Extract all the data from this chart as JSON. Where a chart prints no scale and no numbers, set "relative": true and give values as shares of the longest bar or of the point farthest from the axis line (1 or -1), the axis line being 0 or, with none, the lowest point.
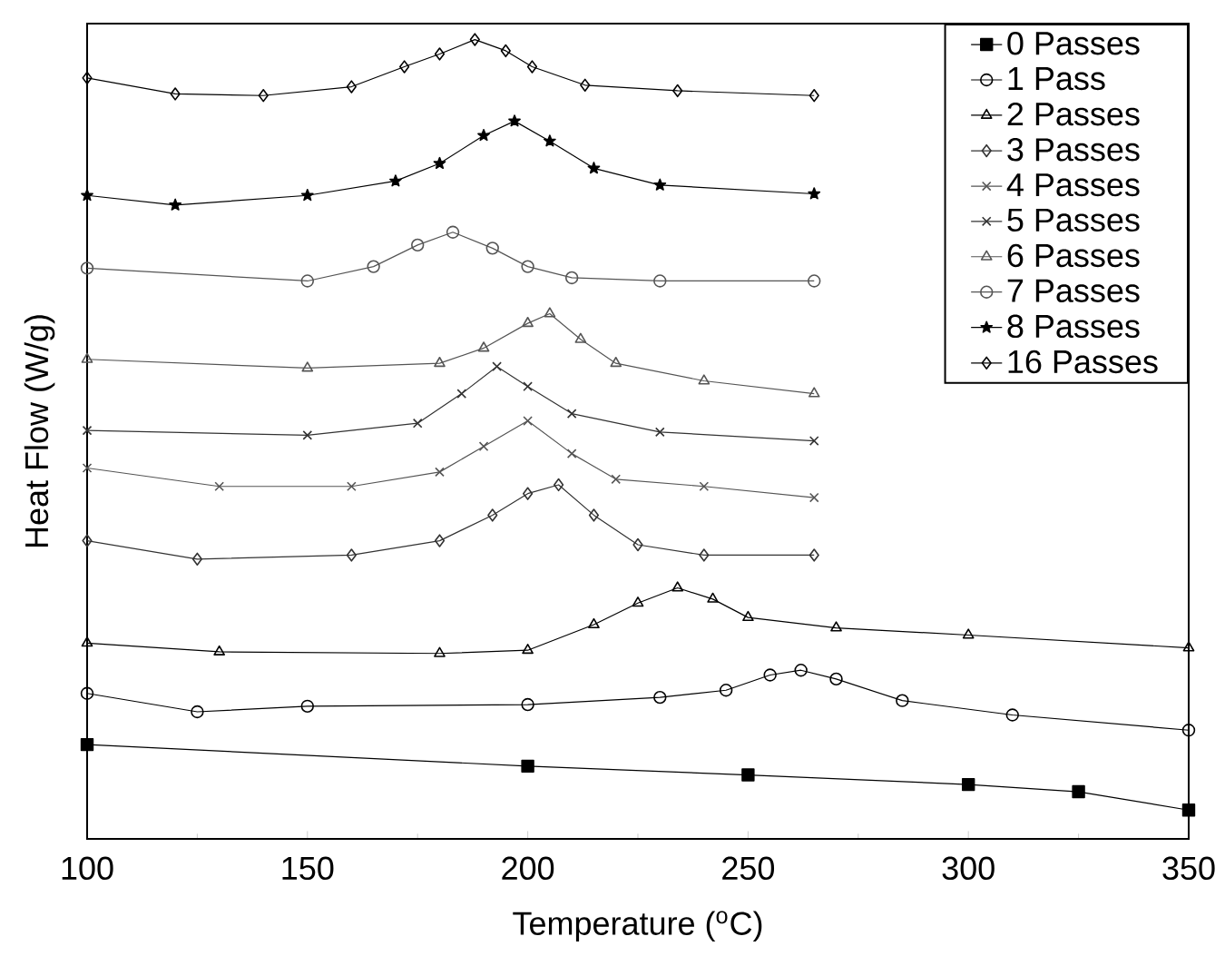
{
  "chart_data": {
    "type": "line",
    "xlabel": "Temperature ($^{o}$C)",
    "ylabel": "Heat Flow (W/g)",
    "relative": true,
    "xlim": [
      100,
      350
    ],
    "xticks": [
      100,
      150,
      200,
      250,
      300,
      350
    ],
    "legend": "top right",
    "series": [
      {
        "name": "0 Passes",
        "color": "#000000",
        "marker": "square",
        "x": [
          100,
          200,
          250,
          300,
          325,
          350
        ],
        "values": [
          0.118,
          0.091,
          0.08,
          0.068,
          0.059,
          0.036
        ]
      },
      {
        "name": "1 Pass",
        "color": "#000000",
        "marker": "circle",
        "x": [
          100,
          125,
          150,
          200,
          230,
          245,
          255,
          262,
          270,
          285,
          310,
          350
        ],
        "values": [
          0.182,
          0.159,
          0.166,
          0.168,
          0.177,
          0.186,
          0.205,
          0.211,
          0.2,
          0.173,
          0.155,
          0.136
        ]
      },
      {
        "name": "2 Passes",
        "color": "#000000",
        "marker": "triangle",
        "x": [
          100,
          130,
          180,
          200,
          215,
          225,
          234,
          242,
          250,
          270,
          300,
          350
        ],
        "values": [
          0.245,
          0.234,
          0.232,
          0.236,
          0.268,
          0.295,
          0.314,
          0.3,
          0.277,
          0.264,
          0.255,
          0.239
        ]
      },
      {
        "name": "3 Passes",
        "color": "#333333",
        "marker": "diamond",
        "x": [
          100,
          125,
          160,
          180,
          192,
          200,
          207,
          215,
          225,
          240,
          265
        ],
        "values": [
          0.373,
          0.35,
          0.355,
          0.373,
          0.405,
          0.432,
          0.443,
          0.405,
          0.368,
          0.355,
          0.355
        ]
      },
      {
        "name": "4 Passes",
        "color": "#555555",
        "marker": "cross",
        "x": [
          100,
          130,
          160,
          180,
          190,
          200,
          210,
          220,
          240,
          265
        ],
        "values": [
          0.464,
          0.441,
          0.441,
          0.459,
          0.491,
          0.523,
          0.482,
          0.45,
          0.441,
          0.427
        ]
      },
      {
        "name": "5 Passes",
        "color": "#333333",
        "marker": "cross",
        "x": [
          100,
          150,
          175,
          185,
          193,
          200,
          210,
          230,
          265
        ],
        "values": [
          0.511,
          0.505,
          0.52,
          0.557,
          0.591,
          0.566,
          0.532,
          0.509,
          0.498
        ]
      },
      {
        "name": "6 Passes",
        "color": "#555555",
        "marker": "triangle",
        "x": [
          100,
          150,
          180,
          190,
          200,
          205,
          212,
          220,
          240,
          265
        ],
        "values": [
          0.6,
          0.589,
          0.595,
          0.614,
          0.645,
          0.657,
          0.625,
          0.595,
          0.573,
          0.557
        ]
      },
      {
        "name": "7 Passes",
        "color": "#555555",
        "marker": "circle",
        "x": [
          100,
          150,
          165,
          175,
          183,
          192,
          200,
          210,
          230,
          265
        ],
        "values": [
          0.714,
          0.698,
          0.716,
          0.743,
          0.759,
          0.739,
          0.716,
          0.702,
          0.698,
          0.698
        ]
      },
      {
        "name": "8 Passes",
        "color": "#000000",
        "marker": "star",
        "x": [
          100,
          120,
          150,
          170,
          180,
          190,
          197,
          205,
          215,
          230,
          265
        ],
        "values": [
          0.805,
          0.793,
          0.805,
          0.823,
          0.845,
          0.88,
          0.898,
          0.873,
          0.839,
          0.818,
          0.807
        ]
      },
      {
        "name": "16 Passes",
        "color": "#000000",
        "marker": "diamond",
        "x": [
          100,
          120,
          140,
          160,
          172,
          180,
          188,
          195,
          201,
          213,
          234,
          265
        ],
        "values": [
          0.952,
          0.932,
          0.93,
          0.941,
          0.966,
          0.982,
          1.0,
          0.986,
          0.966,
          0.943,
          0.936,
          0.93
        ]
      }
    ]
  }
}
